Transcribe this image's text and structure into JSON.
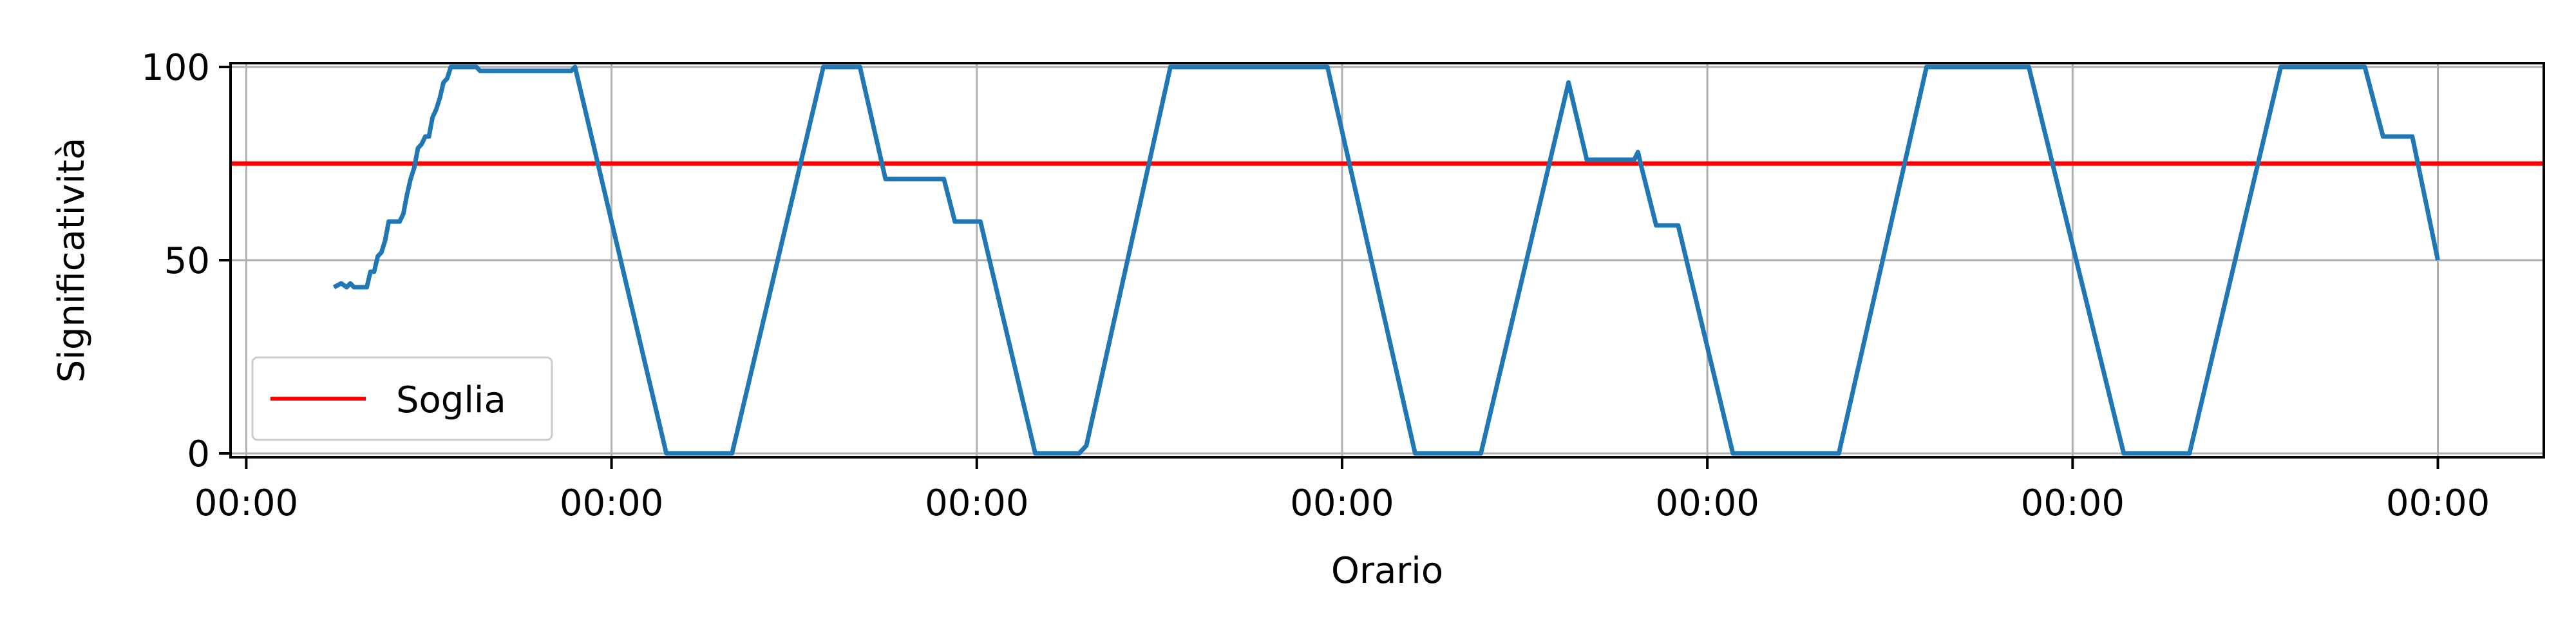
{
  "chart_data": {
    "type": "line",
    "title": "",
    "xlabel": "Orario",
    "ylabel": "Significatività",
    "x_tick_labels": [
      "00:00",
      "00:00",
      "00:00",
      "00:00",
      "00:00",
      "00:00",
      "00:00"
    ],
    "y_ticks": [
      0,
      50,
      100
    ],
    "xlim": [
      -0.043,
      6.29
    ],
    "ylim": [
      -1,
      101
    ],
    "grid": true,
    "legend_position": "lower-left",
    "colors": {
      "series": "#1f77b4",
      "threshold": "#ff0000",
      "grid": "#b0b0b0"
    },
    "threshold": {
      "name": "Soglia",
      "y": 75
    },
    "series": [
      {
        "values": [
          [
            0.24,
            43
          ],
          [
            0.26,
            44
          ],
          [
            0.275,
            43
          ],
          [
            0.285,
            44
          ],
          [
            0.295,
            43
          ],
          [
            0.3,
            43
          ],
          [
            0.31,
            43
          ],
          [
            0.33,
            43
          ],
          [
            0.34,
            47
          ],
          [
            0.35,
            47
          ],
          [
            0.36,
            51
          ],
          [
            0.37,
            52
          ],
          [
            0.38,
            55
          ],
          [
            0.39,
            60
          ],
          [
            0.42,
            60
          ],
          [
            0.43,
            62
          ],
          [
            0.44,
            67
          ],
          [
            0.45,
            71
          ],
          [
            0.46,
            74
          ],
          [
            0.47,
            79
          ],
          [
            0.48,
            80
          ],
          [
            0.49,
            82
          ],
          [
            0.5,
            82
          ],
          [
            0.51,
            87
          ],
          [
            0.52,
            89
          ],
          [
            0.53,
            92
          ],
          [
            0.54,
            96
          ],
          [
            0.55,
            97
          ],
          [
            0.56,
            100
          ],
          [
            0.63,
            100
          ],
          [
            0.64,
            99
          ],
          [
            0.89,
            99
          ],
          [
            0.9,
            100
          ],
          [
            1.15,
            0
          ],
          [
            1.33,
            0
          ],
          [
            1.58,
            100
          ],
          [
            1.68,
            100
          ],
          [
            1.75,
            71
          ],
          [
            1.91,
            71
          ],
          [
            1.94,
            60
          ],
          [
            2.01,
            60
          ],
          [
            2.16,
            0
          ],
          [
            2.28,
            0
          ],
          [
            2.3,
            2
          ],
          [
            2.53,
            100
          ],
          [
            2.96,
            100
          ],
          [
            3.2,
            0
          ],
          [
            3.38,
            0
          ],
          [
            3.62,
            96
          ],
          [
            3.67,
            76
          ],
          [
            3.8,
            76
          ],
          [
            3.81,
            78
          ],
          [
            3.82,
            74
          ],
          [
            3.86,
            59
          ],
          [
            3.92,
            59
          ],
          [
            4.07,
            0
          ],
          [
            4.36,
            0
          ],
          [
            4.6,
            100
          ],
          [
            4.88,
            100
          ],
          [
            5.14,
            0
          ],
          [
            5.32,
            0
          ],
          [
            5.57,
            100
          ],
          [
            5.8,
            100
          ],
          [
            5.85,
            82
          ],
          [
            5.93,
            82
          ],
          [
            6.0,
            50
          ]
        ]
      }
    ]
  }
}
